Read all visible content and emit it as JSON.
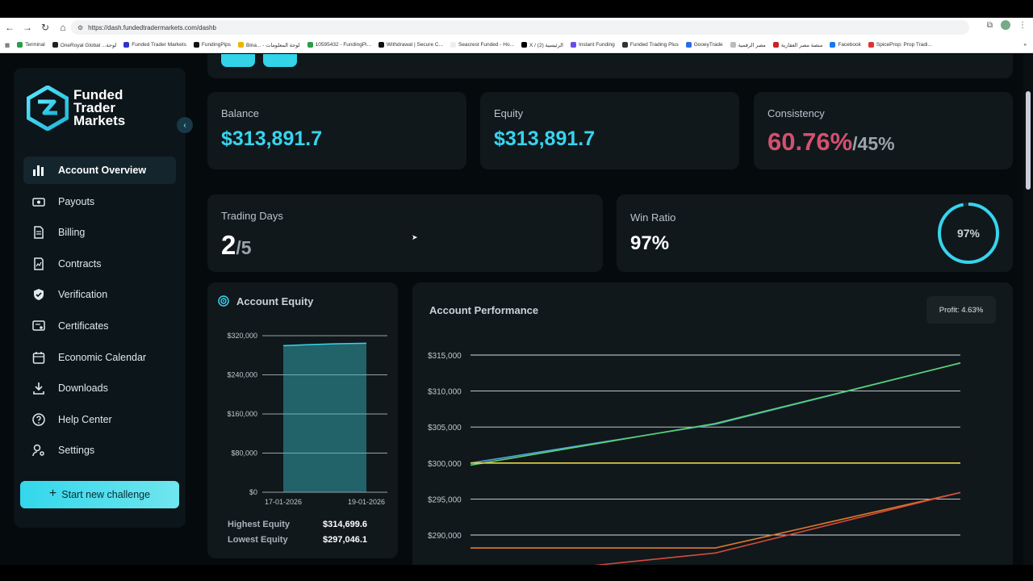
{
  "browser": {
    "url": "https://dash.fundedtradermarkets.com/dashb",
    "bookmarks": [
      {
        "label": "Terminal",
        "color": "#2a9d4a"
      },
      {
        "label": "OneRoyal Global ...لوحة",
        "color": "#222"
      },
      {
        "label": "Funded Trader Markets",
        "color": "#33c"
      },
      {
        "label": "FundingPips",
        "color": "#111"
      },
      {
        "label": "Bina... - لوحة المعلومات",
        "color": "#e9b600"
      },
      {
        "label": "10595432 - FundingPi...",
        "color": "#2a9d4a"
      },
      {
        "label": "Withdrawal | Secure C...",
        "color": "#111"
      },
      {
        "label": "Seacrest Funded - Ho...",
        "color": "#eee"
      },
      {
        "label": "X / الرئيسية (2)",
        "color": "#000"
      },
      {
        "label": "Instant Funding",
        "color": "#6a4de8"
      },
      {
        "label": "Funded Trading Plus",
        "color": "#333"
      },
      {
        "label": "GooeyTrade",
        "color": "#2a6de8"
      },
      {
        "label": "مصر الرقمية",
        "color": "#bbb"
      },
      {
        "label": "منصة مصر العقارية",
        "color": "#c22"
      },
      {
        "label": "Facebook",
        "color": "#1877f2"
      },
      {
        "label": "SpiceProp: Prop Tradi...",
        "color": "#d33"
      }
    ]
  },
  "sidebar": {
    "logo_lines": [
      "Funded",
      "Trader",
      "Markets"
    ],
    "items": [
      {
        "label": "Account Overview",
        "icon": "bar-chart-icon",
        "active": true
      },
      {
        "label": "Payouts",
        "icon": "cash-icon"
      },
      {
        "label": "Billing",
        "icon": "document-icon"
      },
      {
        "label": "Contracts",
        "icon": "contract-icon"
      },
      {
        "label": "Verification",
        "icon": "shield-check-icon"
      },
      {
        "label": "Certificates",
        "icon": "certificate-icon"
      },
      {
        "label": "Economic Calendar",
        "icon": "calendar-icon"
      },
      {
        "label": "Downloads",
        "icon": "download-icon"
      },
      {
        "label": "Help Center",
        "icon": "help-icon"
      },
      {
        "label": "Settings",
        "icon": "settings-icon"
      }
    ],
    "cta_label": "Start new challenge"
  },
  "stats": {
    "balance_label": "Balance",
    "balance_value": "$313,891.7",
    "equity_label": "Equity",
    "equity_value": "$313,891.7",
    "consistency_label": "Consistency",
    "consistency_value": "60.76%",
    "consistency_target": "/45%",
    "trading_days_label": "Trading Days",
    "trading_days_value": "2",
    "trading_days_target": "/5",
    "win_ratio_label": "Win Ratio",
    "win_ratio_value": "97%",
    "win_ratio_ring": "97%",
    "win_ratio_fraction": 0.97
  },
  "equity_panel": {
    "title": "Account Equity",
    "highest_label": "Highest Equity",
    "highest_value": "$314,699.6",
    "lowest_label": "Lowest Equity",
    "lowest_value": "$297,046.1"
  },
  "performance_panel": {
    "title": "Account Performance",
    "profit_badge": "Profit: 4.63%"
  },
  "colors": {
    "accent": "#37d4ee",
    "pink": "#d4506f"
  },
  "chart_data": [
    {
      "type": "area",
      "title": "Account Equity",
      "x": [
        "17-01-2026",
        "19-01-2026"
      ],
      "series": [
        {
          "values": [
            299500,
            304500
          ]
        }
      ],
      "ylim": [
        0,
        320000
      ],
      "yticks": [
        "$320,000",
        "$240,000",
        "$160,000",
        "$80,000",
        "$0"
      ],
      "ytick_values": [
        320000,
        240000,
        160000,
        80000,
        0
      ],
      "grid": true
    },
    {
      "type": "line",
      "title": "Account Performance",
      "yticks": [
        "$315,000",
        "$310,000",
        "$305,000",
        "$300,000",
        "$295,000",
        "$290,000"
      ],
      "ytick_values": [
        315000,
        310000,
        305000,
        300000,
        295000,
        290000
      ],
      "ylim": [
        286500,
        316500
      ],
      "x": [
        0,
        0.5,
        1
      ],
      "series": [
        {
          "color": "#4fa3e8",
          "values": [
            300000,
            305400,
            313900
          ]
        },
        {
          "color": "#5ad26a",
          "values": [
            299700,
            305500,
            313900
          ]
        },
        {
          "color": "#e8d44a",
          "values": [
            300000,
            300000,
            300000
          ]
        },
        {
          "color": "#e07a2a",
          "values": [
            288200,
            288200,
            295900
          ]
        },
        {
          "color": "#d84a3a",
          "values": [
            284000,
            287500,
            295900
          ]
        }
      ],
      "grid": true
    }
  ]
}
